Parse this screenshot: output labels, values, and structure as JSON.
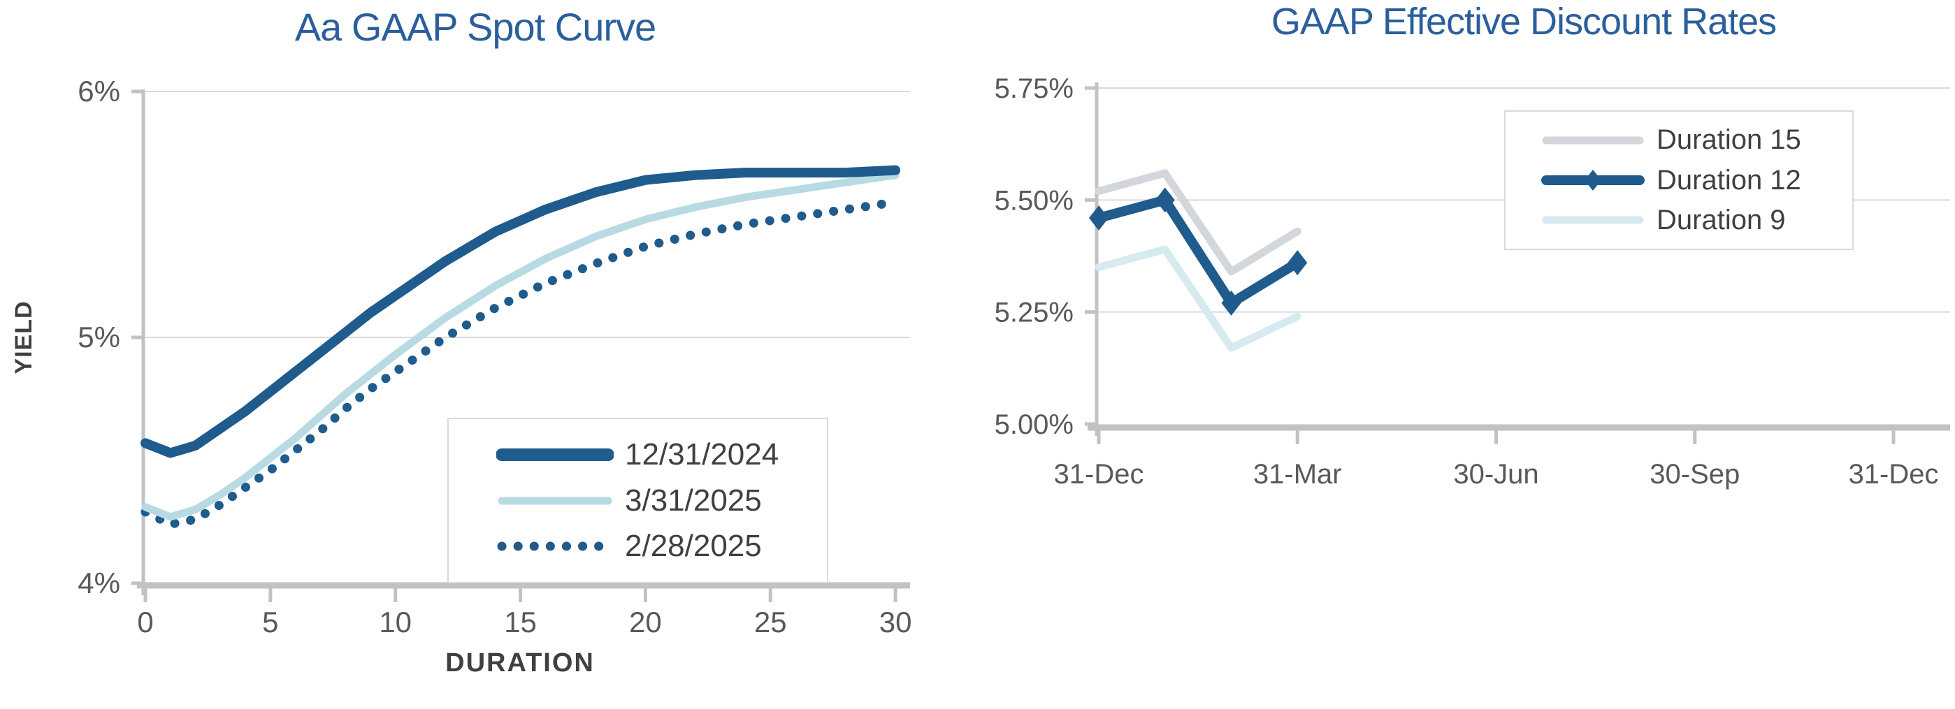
{
  "page": {
    "background": "#FFFFFF"
  },
  "colors": {
    "title_blue": "#2A5F9B",
    "dark_blue": "#1F5B8D",
    "light_blue": "#B7DAE3",
    "pale_blue": "#D7EAF0",
    "series_gray": "#D3D6DB",
    "tick_text": "#595959",
    "label_text": "#404040",
    "axis_gray": "#C2C2C2",
    "grid_gray": "#DADADA",
    "legend_border": "#D9D9D9"
  },
  "chart_data": [
    {
      "type": "line",
      "title": "Aa GAAP Spot Curve",
      "xlabel": "DURATION",
      "ylabel": "YIELD",
      "xlim": [
        0,
        30
      ],
      "ylim": [
        4,
        6
      ],
      "grid": "horizontal",
      "legend_position": "inside-bottom-right",
      "x_ticks": {
        "values": [
          0,
          5,
          10,
          15,
          20,
          25,
          30
        ],
        "labels": [
          "0",
          "5",
          "10",
          "15",
          "20",
          "25",
          "30"
        ]
      },
      "y_ticks": {
        "values": [
          4,
          5,
          6
        ],
        "labels": [
          "4%",
          "5%",
          "6%"
        ]
      },
      "x": [
        0,
        1,
        2,
        3,
        4,
        5,
        6,
        7,
        8,
        9,
        10,
        12,
        14,
        16,
        18,
        20,
        22,
        24,
        26,
        28,
        30
      ],
      "series": [
        {
          "name": "12/31/2024",
          "color": "#1F5B8D",
          "style": "thick-solid",
          "values": [
            4.57,
            4.53,
            4.56,
            4.63,
            4.7,
            4.78,
            4.86,
            4.94,
            5.02,
            5.1,
            5.17,
            5.31,
            5.43,
            5.52,
            5.59,
            5.64,
            5.66,
            5.67,
            5.67,
            5.67,
            5.68
          ]
        },
        {
          "name": "3/31/2025",
          "color": "#B7DAE3",
          "style": "solid",
          "values": [
            4.31,
            4.27,
            4.3,
            4.36,
            4.43,
            4.51,
            4.59,
            4.68,
            4.77,
            4.85,
            4.93,
            5.08,
            5.21,
            5.32,
            5.41,
            5.48,
            5.53,
            5.57,
            5.6,
            5.63,
            5.66
          ]
        },
        {
          "name": "2/28/2025",
          "color": "#1F5B8D",
          "style": "dotted",
          "values": [
            4.29,
            4.24,
            4.26,
            4.32,
            4.39,
            4.46,
            4.54,
            4.62,
            4.71,
            4.79,
            4.86,
            5.0,
            5.12,
            5.22,
            5.3,
            5.37,
            5.42,
            5.46,
            5.49,
            5.52,
            5.55
          ]
        }
      ]
    },
    {
      "type": "line",
      "title": "GAAP Effective Discount Rates",
      "xlabel": "",
      "ylabel": "",
      "xlim": [
        0,
        12.3
      ],
      "ylim": [
        5.0,
        5.75
      ],
      "grid": "horizontal",
      "legend_position": "inside-top-right",
      "x_ticks": {
        "values": [
          0,
          3,
          6,
          9,
          12
        ],
        "labels": [
          "31-Dec",
          "31-Mar",
          "30-Jun",
          "30-Sep",
          "31-Dec"
        ]
      },
      "y_ticks": {
        "values": [
          5.0,
          5.25,
          5.5,
          5.75
        ],
        "labels": [
          "5.00%",
          "5.25%",
          "5.50%",
          "5.75%"
        ]
      },
      "x": [
        0,
        1,
        2,
        3
      ],
      "series": [
        {
          "name": "Duration 15",
          "color": "#D3D6DB",
          "style": "solid",
          "values": [
            5.52,
            5.56,
            5.34,
            5.43
          ]
        },
        {
          "name": "Duration 12",
          "color": "#1F5B8D",
          "style": "solid-diamond",
          "values": [
            5.46,
            5.5,
            5.27,
            5.36
          ]
        },
        {
          "name": "Duration 9",
          "color": "#D7EAF0",
          "style": "solid",
          "values": [
            5.35,
            5.39,
            5.17,
            5.24
          ]
        }
      ]
    }
  ]
}
